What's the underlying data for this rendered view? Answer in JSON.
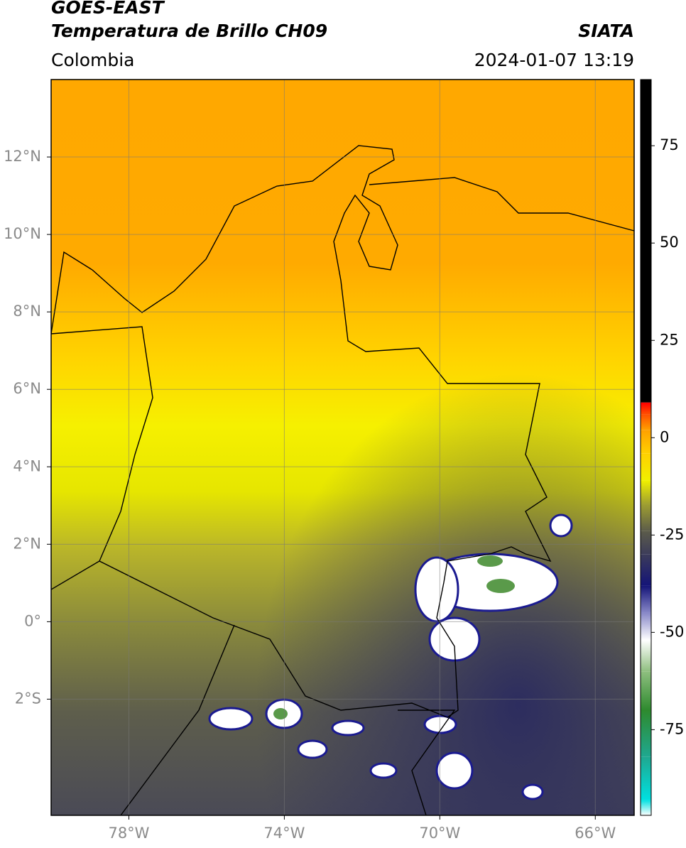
{
  "header": {
    "satellite": "GOES-EAST",
    "product": "Temperatura de Brillo CH09",
    "region": "Colombia",
    "source": "SIATA",
    "datetime": "2024-01-07 13:19"
  },
  "map": {
    "xlim": [
      -80,
      -65
    ],
    "ylim": [
      -5,
      14
    ],
    "grid": true,
    "xticks": [
      {
        "value": -78,
        "label": "78°W"
      },
      {
        "value": -74,
        "label": "74°W"
      },
      {
        "value": -70,
        "label": "70°W"
      },
      {
        "value": -66,
        "label": "66°W"
      }
    ],
    "yticks": [
      {
        "value": 12,
        "label": "12°N"
      },
      {
        "value": 10,
        "label": "10°N"
      },
      {
        "value": 8,
        "label": "8°N"
      },
      {
        "value": 6,
        "label": "6°N"
      },
      {
        "value": 4,
        "label": "4°N"
      },
      {
        "value": 2,
        "label": "2°N"
      },
      {
        "value": 0,
        "label": "0°"
      },
      {
        "value": -2,
        "label": "2°S"
      }
    ]
  },
  "colorbar": {
    "lim": [
      -97,
      92
    ],
    "ticks": [
      75,
      50,
      25,
      0,
      -25,
      -50,
      -75
    ],
    "colormap": [
      {
        "value": -97,
        "color": "#ffffff"
      },
      {
        "value": -93,
        "color": "#00e0e0"
      },
      {
        "value": -82,
        "color": "#1fa890"
      },
      {
        "value": -70,
        "color": "#2e8a2e"
      },
      {
        "value": -60,
        "color": "#8fbf80"
      },
      {
        "value": -52,
        "color": "#ffffff"
      },
      {
        "value": -45,
        "color": "#8888c8"
      },
      {
        "value": -38,
        "color": "#141478"
      },
      {
        "value": -30,
        "color": "#3c3c5a"
      },
      {
        "value": -24,
        "color": "#5c5c4a"
      },
      {
        "value": -17,
        "color": "#a0a030"
      },
      {
        "value": -11,
        "color": "#f0f000"
      },
      {
        "value": -4,
        "color": "#ffd000"
      },
      {
        "value": 2,
        "color": "#ffa000"
      },
      {
        "value": 6,
        "color": "#ff5000"
      },
      {
        "value": 9,
        "color": "#ff0000"
      },
      {
        "value": 9.1,
        "color": "#000000"
      },
      {
        "value": 92,
        "color": "#000000"
      }
    ]
  }
}
